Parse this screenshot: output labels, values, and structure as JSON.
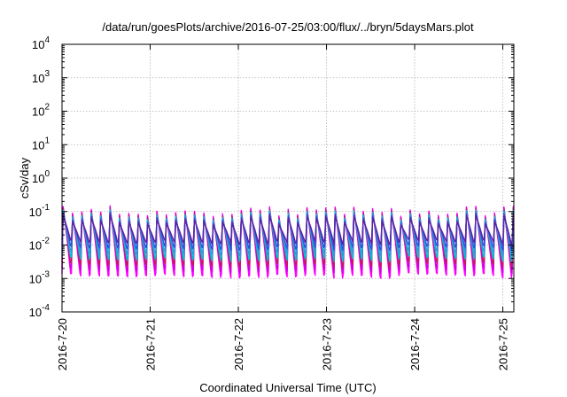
{
  "chart_data": {
    "type": "line",
    "title": "/data/run/goesPlots/archive/2016-07-25/03:00/flux/../bryn/5daysMars.plot",
    "xlabel": "Coordinated Universal Time (UTC)",
    "ylabel": "cSv/day",
    "yscale": "log",
    "ylim": [
      0.0001,
      10000
    ],
    "xlim": [
      "2016-07-20 00:00",
      "2016-07-25 03:00"
    ],
    "grid": true,
    "y_ticks": [
      {
        "base": "10",
        "exp": "-4"
      },
      {
        "base": "10",
        "exp": "-3"
      },
      {
        "base": "10",
        "exp": "-2"
      },
      {
        "base": "10",
        "exp": "-1"
      },
      {
        "base": "10",
        "exp": "0"
      },
      {
        "base": "10",
        "exp": "1"
      },
      {
        "base": "10",
        "exp": "2"
      },
      {
        "base": "10",
        "exp": "3"
      },
      {
        "base": "10",
        "exp": "4"
      }
    ],
    "x_ticks": [
      "2016-7-20",
      "2016-7-21",
      "2016-7-22",
      "2016-7-23",
      "2016-7-24",
      "2016-7-25"
    ],
    "oscillation": {
      "cycles_per_day": 9.4,
      "peak_range": [
        0.07,
        0.15
      ],
      "trough_range": [
        0.001,
        0.015
      ]
    },
    "series_colors": [
      "#ff00ff",
      "#d000e0",
      "#c8185a",
      "#00c0d0",
      "#20a0e0",
      "#3050e0",
      "#6020a0"
    ]
  }
}
